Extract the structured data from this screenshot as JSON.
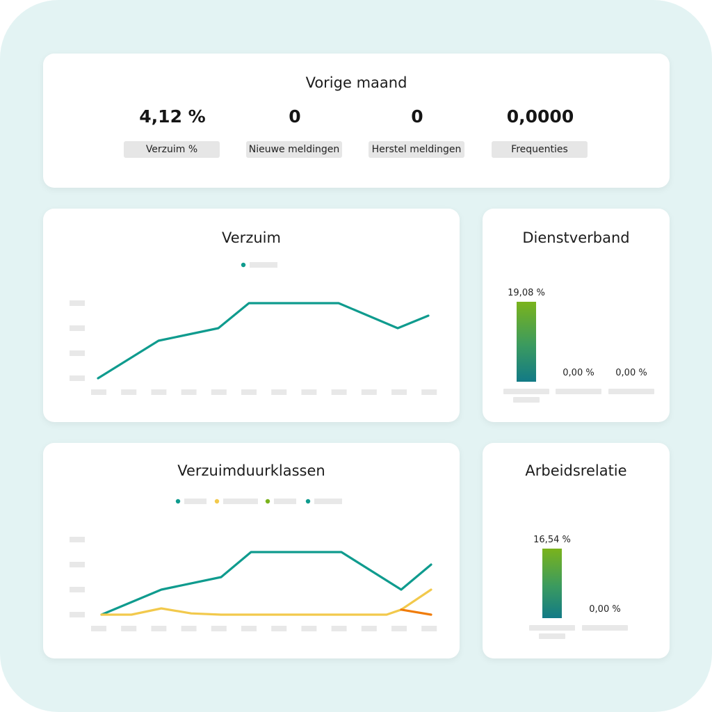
{
  "summary": {
    "title": "Vorige maand",
    "kpis": [
      {
        "value": "4,12 %",
        "label": "Verzuim %"
      },
      {
        "value": "0",
        "label": "Nieuwe meldingen"
      },
      {
        "value": "0",
        "label": "Herstel meldingen"
      },
      {
        "value": "0,0000",
        "label": "Frequenties"
      }
    ]
  },
  "verzuim": {
    "title": "Verzuim"
  },
  "dienstverband": {
    "title": "Dienstverband",
    "bars": [
      {
        "label": "19,08 %",
        "value": 19.08
      },
      {
        "label": "0,00 %",
        "value": 0
      },
      {
        "label": "0,00 %",
        "value": 0
      }
    ]
  },
  "verzuimduurklassen": {
    "title": "Verzuimduurklassen"
  },
  "arbeidsrelatie": {
    "title": "Arbeidsrelatie",
    "bars": [
      {
        "label": "16,54 %",
        "value": 16.54
      },
      {
        "label": "0,00 %",
        "value": 0
      }
    ]
  },
  "colors": {
    "teal": "#0f9b8e",
    "yellow": "#f2c94c",
    "orange": "#f07c0a",
    "green": "#7ab31c",
    "placeholder": "#e8e8e8"
  },
  "chart_data": [
    {
      "type": "line",
      "series": [
        {
          "color": "#0f9b8e",
          "values": [
            0,
            1.5,
            2,
            3,
            3,
            3,
            3,
            2,
            2.5
          ]
        }
      ],
      "x": [
        0,
        2,
        4,
        5,
        7,
        8,
        9,
        10,
        11
      ],
      "ylim": [
        0,
        3
      ]
    },
    {
      "type": "line",
      "series": [
        {
          "color": "#0f9b8e",
          "values": [
            0,
            1,
            1.5,
            2.5,
            2.5,
            2.5,
            2.5,
            1,
            2
          ]
        },
        {
          "color": "#f2c94c",
          "values": [
            0,
            0,
            0.25,
            0.05,
            0,
            0,
            0,
            0,
            0,
            0,
            0,
            0.2,
            1
          ]
        },
        {
          "color": "#f07c0a",
          "values": [
            0.2,
            0
          ]
        }
      ],
      "ylim": [
        0,
        3
      ]
    },
    {
      "type": "bar",
      "categories": [
        "",
        "",
        ""
      ],
      "values": [
        19.08,
        0,
        0
      ]
    },
    {
      "type": "bar",
      "categories": [
        "",
        ""
      ],
      "values": [
        16.54,
        0
      ]
    }
  ]
}
